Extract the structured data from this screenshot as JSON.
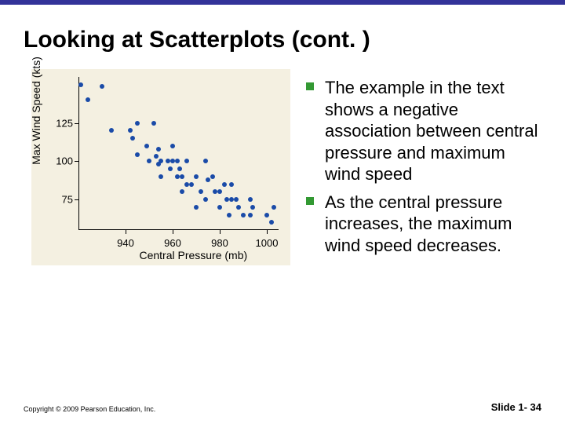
{
  "title": "Looking at Scatterplots (cont. )",
  "chart": {
    "type": "scatter",
    "xlabel": "Central Pressure (mb)",
    "ylabel": "Max Wind Speed (kts)",
    "background_color": "#f4f0e1",
    "point_color": "#1a4ba8",
    "xlim": [
      920,
      1005
    ],
    "ylim": [
      55,
      155
    ],
    "x_ticks": [
      940,
      960,
      980,
      1000
    ],
    "y_ticks": [
      75,
      100,
      125
    ],
    "label_fontsize": 14,
    "tick_fontsize": 13,
    "points": [
      [
        921,
        150
      ],
      [
        924,
        140
      ],
      [
        930,
        149
      ],
      [
        934,
        120
      ],
      [
        942,
        120
      ],
      [
        943,
        115
      ],
      [
        945,
        104
      ],
      [
        945,
        125
      ],
      [
        949,
        110
      ],
      [
        950,
        100
      ],
      [
        952,
        125
      ],
      [
        953,
        103
      ],
      [
        954,
        98
      ],
      [
        954,
        108
      ],
      [
        955,
        100
      ],
      [
        955,
        90
      ],
      [
        958,
        100
      ],
      [
        959,
        95
      ],
      [
        960,
        110
      ],
      [
        960,
        100
      ],
      [
        962,
        90
      ],
      [
        962,
        100
      ],
      [
        963,
        95
      ],
      [
        964,
        90
      ],
      [
        964,
        80
      ],
      [
        966,
        100
      ],
      [
        966,
        85
      ],
      [
        968,
        85
      ],
      [
        970,
        70
      ],
      [
        970,
        90
      ],
      [
        972,
        80
      ],
      [
        974,
        75
      ],
      [
        974,
        100
      ],
      [
        975,
        88
      ],
      [
        977,
        90
      ],
      [
        978,
        80
      ],
      [
        980,
        80
      ],
      [
        980,
        70
      ],
      [
        982,
        85
      ],
      [
        983,
        75
      ],
      [
        984,
        65
      ],
      [
        985,
        85
      ],
      [
        985,
        75
      ],
      [
        987,
        75
      ],
      [
        988,
        70
      ],
      [
        990,
        65
      ],
      [
        993,
        75
      ],
      [
        993,
        65
      ],
      [
        994,
        70
      ],
      [
        1000,
        65
      ],
      [
        1002,
        60
      ],
      [
        1003,
        70
      ]
    ]
  },
  "bullets": [
    "The example in the text shows a negative association between central pressure and maximum wind speed",
    "As the central pressure increases, the maximum wind speed decreases."
  ],
  "footer": {
    "copyright": "Copyright © 2009 Pearson Education, Inc.",
    "slide": "Slide 1- 34"
  },
  "colors": {
    "top_bar": "#333399",
    "bullet_marker": "#339933"
  }
}
